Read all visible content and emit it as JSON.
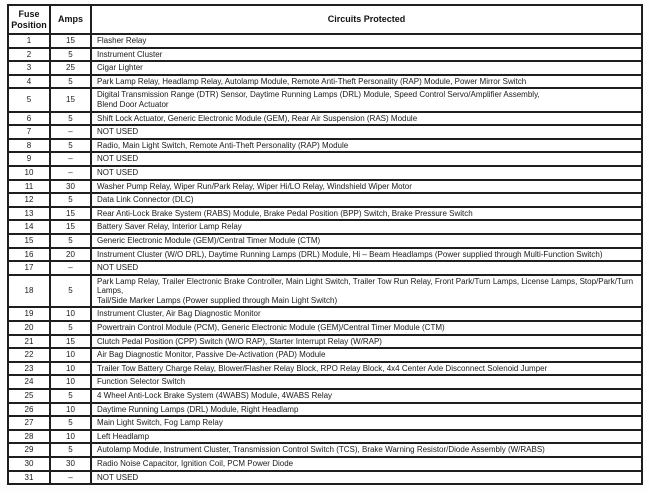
{
  "table": {
    "headers": {
      "fuse_position": "Fuse Position",
      "amps": "Amps",
      "circuits_protected": "Circuits Protected"
    },
    "border_color": "#1e1e1e",
    "rows": [
      {
        "position": "1",
        "amps": "15",
        "circuits": "Flasher Relay"
      },
      {
        "position": "2",
        "amps": "5",
        "circuits": "Instrument Cluster"
      },
      {
        "position": "3",
        "amps": "25",
        "circuits": "Cigar Lighter"
      },
      {
        "position": "4",
        "amps": "5",
        "circuits": "Park Lamp Relay, Headlamp Relay, Autolamp Module, Remote Anti-Theft Personality (RAP) Module, Power Mirror Switch"
      },
      {
        "position": "5",
        "amps": "15",
        "circuits": "Digital Transmission Range (DTR) Sensor, Daytime Running Lamps (DRL) Module, Speed Control Servo/Amplifier Assembly,\nBlend Door Actuator"
      },
      {
        "position": "6",
        "amps": "5",
        "circuits": "Shift Lock Actuator, Generic Electronic Module (GEM), Rear Air Suspension (RAS) Module"
      },
      {
        "position": "7",
        "amps": "–",
        "circuits": "NOT USED"
      },
      {
        "position": "8",
        "amps": "5",
        "circuits": "Radio, Main Light Switch, Remote Anti-Theft Personality (RAP) Module"
      },
      {
        "position": "9",
        "amps": "–",
        "circuits": "NOT USED"
      },
      {
        "position": "10",
        "amps": "–",
        "circuits": "NOT USED"
      },
      {
        "position": "11",
        "amps": "30",
        "circuits": "Washer Pump Relay, Wiper Run/Park Relay, Wiper Hi/LO Relay, Windshield Wiper Motor"
      },
      {
        "position": "12",
        "amps": "5",
        "circuits": "Data Link Connector (DLC)"
      },
      {
        "position": "13",
        "amps": "15",
        "circuits": "Rear Anti-Lock Brake System (RABS) Module, Brake Pedal Position (BPP) Switch, Brake Pressure Switch"
      },
      {
        "position": "14",
        "amps": "15",
        "circuits": "Battery Saver Relay, Interior Lamp Relay"
      },
      {
        "position": "15",
        "amps": "5",
        "circuits": "Generic Electronic Module (GEM)/Central Timer Module (CTM)"
      },
      {
        "position": "16",
        "amps": "20",
        "circuits": "Instrument Cluster (W/O DRL), Daytime Running Lamps (DRL) Module, Hi – Beam Headlamps (Power supplied through Multi-Function Switch)"
      },
      {
        "position": "17",
        "amps": "–",
        "circuits": "NOT USED"
      },
      {
        "position": "18",
        "amps": "5",
        "circuits": "Park Lamp Relay, Trailer Electronic Brake Controller, Main Light Switch, Trailer Tow Run Relay, Front Park/Turn Lamps, License Lamps, Stop/Park/Turn Lamps,\nTail/Side Marker Lamps (Power supplied through Main Light Switch)"
      },
      {
        "position": "19",
        "amps": "10",
        "circuits": "Instrument Cluster, Air Bag Diagnostic Monitor"
      },
      {
        "position": "20",
        "amps": "5",
        "circuits": "Powertrain Control Module (PCM), Generic Electronic Module (GEM)/Central Timer Module (CTM)"
      },
      {
        "position": "21",
        "amps": "15",
        "circuits": "Clutch Pedal Position (CPP) Switch (W/O RAP), Starter Interrupt Relay (W/RAP)"
      },
      {
        "position": "22",
        "amps": "10",
        "circuits": "Air Bag Diagnostic Monitor, Passive De-Activation (PAD) Module"
      },
      {
        "position": "23",
        "amps": "10",
        "circuits": "Trailer Tow Battery Charge Relay, Blower/Flasher Relay Block,  RPO  Relay Block, 4x4 Center Axle  Disconnect Solenoid Jumper"
      },
      {
        "position": "24",
        "amps": "10",
        "circuits": "Function Selector Switch"
      },
      {
        "position": "25",
        "amps": "5",
        "circuits": "4 Wheel Anti-Lock Brake System (4WABS) Module, 4WABS Relay"
      },
      {
        "position": "26",
        "amps": "10",
        "circuits": "Daytime Running Lamps (DRL) Module, Right Headlamp"
      },
      {
        "position": "27",
        "amps": "5",
        "circuits": "Main Light Switch, Fog Lamp Relay"
      },
      {
        "position": "28",
        "amps": "10",
        "circuits": "Left Headlamp"
      },
      {
        "position": "29",
        "amps": "5",
        "circuits": "Autolamp Module, Instrument Cluster, Transmission Control Switch (TCS), Brake Warning Resistor/Diode Assembly (W/RABS)"
      },
      {
        "position": "30",
        "amps": "30",
        "circuits": "Radio Noise Capacitor, Ignition Coil, PCM Power Diode"
      },
      {
        "position": "31",
        "amps": "–",
        "circuits": "NOT USED"
      }
    ]
  }
}
